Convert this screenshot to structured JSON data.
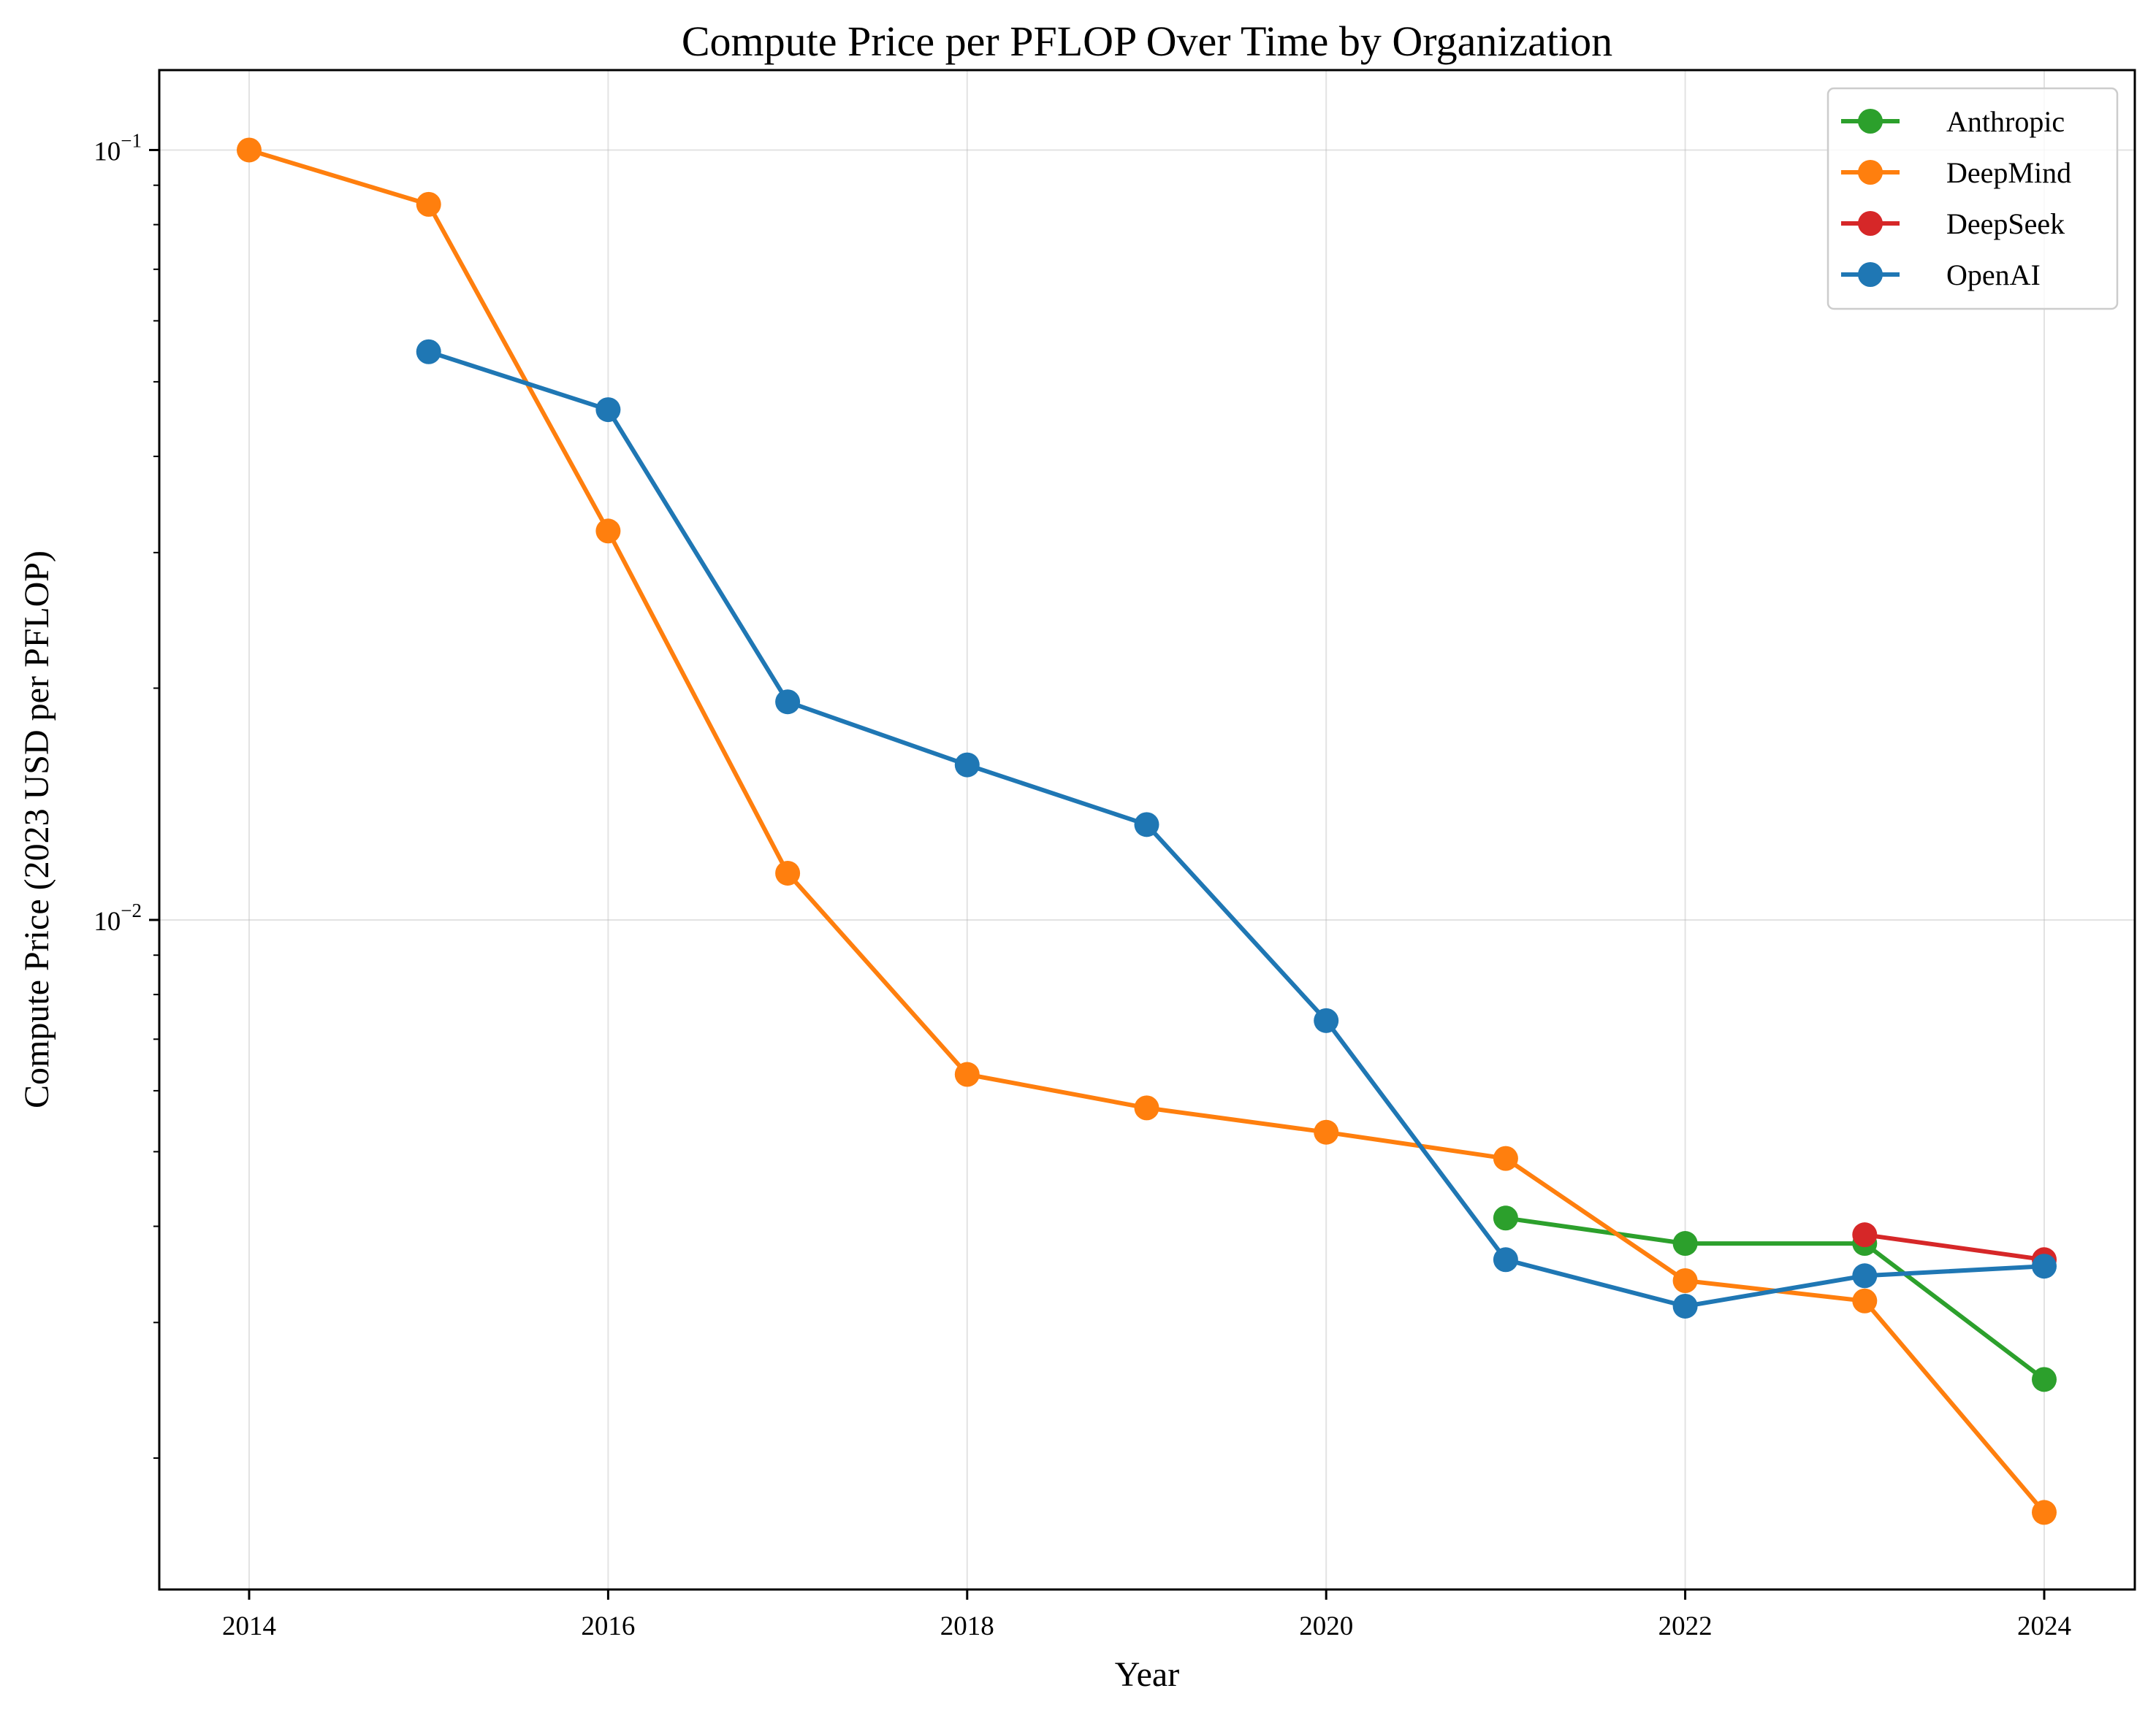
{
  "chart_data": {
    "type": "line",
    "title": "Compute Price per PFLOP Over Time by Organization",
    "xlabel": "Year",
    "ylabel": "Compute Price (2023 USD per PFLOP)",
    "yscale": "log",
    "xlim": [
      2013.5,
      2024.5
    ],
    "ylim": [
      0.00135,
      0.127
    ],
    "x_ticks": [
      2014,
      2016,
      2018,
      2020,
      2022,
      2024
    ],
    "y_ticks": [
      {
        "value": 0.1,
        "base": "10",
        "exp": "−1"
      },
      {
        "value": 0.01,
        "base": "10",
        "exp": "−2"
      }
    ],
    "grid": true,
    "legend_position": "top-right",
    "series": [
      {
        "name": "Anthropic",
        "color": "#2ca02c",
        "x": [
          2021,
          2022,
          2023,
          2024
        ],
        "values": [
          0.0041,
          0.0038,
          0.0038,
          0.00253
        ]
      },
      {
        "name": "DeepMind",
        "color": "#ff7f0e",
        "x": [
          2014,
          2015,
          2016,
          2017,
          2018,
          2019,
          2020,
          2021,
          2022,
          2023,
          2024
        ],
        "values": [
          0.1,
          0.085,
          0.032,
          0.0115,
          0.0063,
          0.0057,
          0.0053,
          0.0049,
          0.0034,
          0.0032,
          0.0017
        ]
      },
      {
        "name": "DeepSeek",
        "color": "#d62728",
        "x": [
          2023,
          2024
        ],
        "values": [
          0.0039,
          0.00362
        ]
      },
      {
        "name": "OpenAI",
        "color": "#1f77b4",
        "x": [
          2015,
          2016,
          2017,
          2018,
          2019,
          2020,
          2021,
          2022,
          2023,
          2024
        ],
        "values": [
          0.0547,
          0.046,
          0.0192,
          0.0159,
          0.0133,
          0.0074,
          0.00362,
          0.00315,
          0.00345,
          0.00355
        ]
      }
    ]
  }
}
